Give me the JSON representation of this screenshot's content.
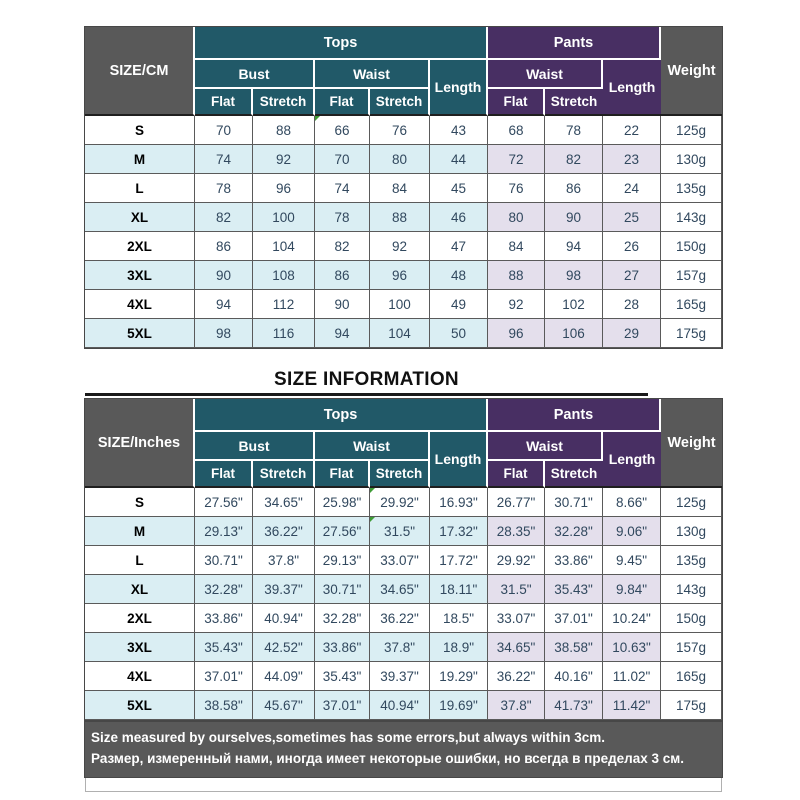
{
  "colors": {
    "header_gray": "#595959",
    "tops_teal": "#215968",
    "pants_purple": "#482F63",
    "row_tint_blue": "#DAEEF3",
    "row_tint_lavender": "#E4DFEC",
    "data_text": "#31485E",
    "footer_bg": "#595959",
    "flag_green": "#3F9C35"
  },
  "labels": {
    "tops": "Tops",
    "pants": "Pants",
    "weight": "Weight",
    "bust": "Bust",
    "waist": "Waist",
    "length": "Length",
    "flat": "Flat",
    "stretch": "Stretch"
  },
  "heading": {
    "title": "SIZE INFORMATION"
  },
  "tables": [
    {
      "unit_label": "SIZE/CM",
      "columns": [
        "Bust Flat",
        "Bust Stretch",
        "Waist Flat",
        "Waist Stretch",
        "Length",
        "Pants Waist Flat",
        "Pants Waist Stretch",
        "Pants Length"
      ],
      "rows": [
        {
          "size": "S",
          "values": [
            "70",
            "88",
            "66",
            "76",
            "43",
            "68",
            "78",
            "22"
          ],
          "weight": "125g"
        },
        {
          "size": "M",
          "values": [
            "74",
            "92",
            "70",
            "80",
            "44",
            "72",
            "82",
            "23"
          ],
          "weight": "130g"
        },
        {
          "size": "L",
          "values": [
            "78",
            "96",
            "74",
            "84",
            "45",
            "76",
            "86",
            "24"
          ],
          "weight": "135g"
        },
        {
          "size": "XL",
          "values": [
            "82",
            "100",
            "78",
            "88",
            "46",
            "80",
            "90",
            "25"
          ],
          "weight": "143g"
        },
        {
          "size": "2XL",
          "values": [
            "86",
            "104",
            "82",
            "92",
            "47",
            "84",
            "94",
            "26"
          ],
          "weight": "150g"
        },
        {
          "size": "3XL",
          "values": [
            "90",
            "108",
            "86",
            "96",
            "48",
            "88",
            "98",
            "27"
          ],
          "weight": "157g"
        },
        {
          "size": "4XL",
          "values": [
            "94",
            "112",
            "90",
            "100",
            "49",
            "92",
            "102",
            "28"
          ],
          "weight": "165g"
        },
        {
          "size": "5XL",
          "values": [
            "98",
            "116",
            "94",
            "104",
            "50",
            "96",
            "106",
            "29"
          ],
          "weight": "175g"
        }
      ],
      "green_flags": [
        [
          0,
          2
        ]
      ]
    },
    {
      "unit_label": "SIZE/Inches",
      "columns": [
        "Bust Flat",
        "Bust Stretch",
        "Waist Flat",
        "Waist Stretch",
        "Length",
        "Pants Waist Flat",
        "Pants Waist Stretch",
        "Pants Length"
      ],
      "rows": [
        {
          "size": "S",
          "values": [
            "27.56\"",
            "34.65\"",
            "25.98\"",
            "29.92\"",
            "16.93\"",
            "26.77\"",
            "30.71\"",
            "8.66\""
          ],
          "weight": "125g"
        },
        {
          "size": "M",
          "values": [
            "29.13\"",
            "36.22\"",
            "27.56\"",
            "31.5\"",
            "17.32\"",
            "28.35\"",
            "32.28\"",
            "9.06\""
          ],
          "weight": "130g"
        },
        {
          "size": "L",
          "values": [
            "30.71\"",
            "37.8\"",
            "29.13\"",
            "33.07\"",
            "17.72\"",
            "29.92\"",
            "33.86\"",
            "9.45\""
          ],
          "weight": "135g"
        },
        {
          "size": "XL",
          "values": [
            "32.28\"",
            "39.37\"",
            "30.71\"",
            "34.65\"",
            "18.11\"",
            "31.5\"",
            "35.43\"",
            "9.84\""
          ],
          "weight": "143g"
        },
        {
          "size": "2XL",
          "values": [
            "33.86\"",
            "40.94\"",
            "32.28\"",
            "36.22\"",
            "18.5\"",
            "33.07\"",
            "37.01\"",
            "10.24\""
          ],
          "weight": "150g"
        },
        {
          "size": "3XL",
          "values": [
            "35.43\"",
            "42.52\"",
            "33.86\"",
            "37.8\"",
            "18.9\"",
            "34.65\"",
            "38.58\"",
            "10.63\""
          ],
          "weight": "157g"
        },
        {
          "size": "4XL",
          "values": [
            "37.01\"",
            "44.09\"",
            "35.43\"",
            "39.37\"",
            "19.29\"",
            "36.22\"",
            "40.16\"",
            "11.02\""
          ],
          "weight": "165g"
        },
        {
          "size": "5XL",
          "values": [
            "38.58\"",
            "45.67\"",
            "37.01\"",
            "40.94\"",
            "19.69\"",
            "37.8\"",
            "41.73\"",
            "11.42\""
          ],
          "weight": "175g"
        }
      ],
      "green_flags": [
        [
          0,
          3
        ],
        [
          1,
          3
        ]
      ]
    }
  ],
  "footer": {
    "line1": "Size measured by ourselves,sometimes has some errors,but always within 3cm.",
    "line2": "Размер, измеренный нами, иногда имеет некоторые ошибки, но всегда в пределах 3 см."
  }
}
